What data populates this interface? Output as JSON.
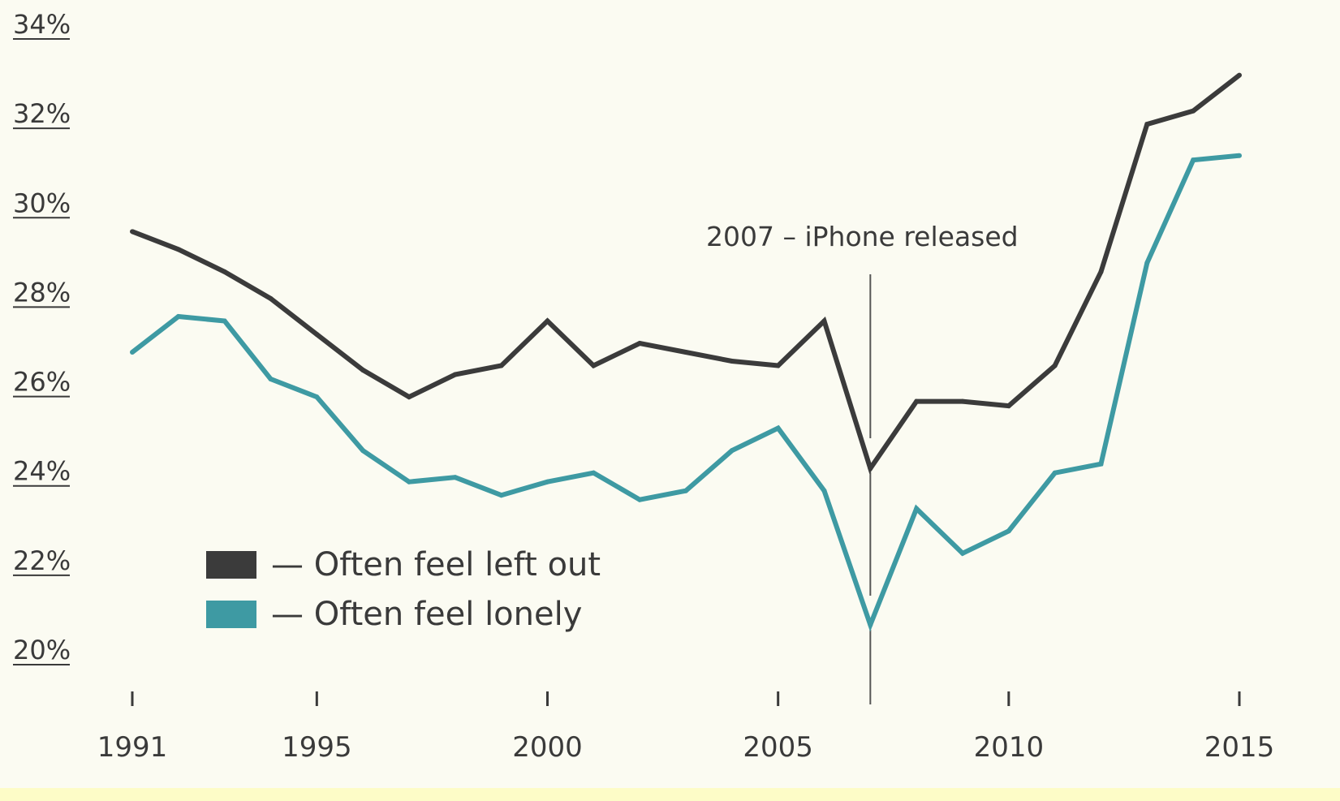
{
  "chart_data": {
    "type": "line",
    "title": "",
    "xlabel": "",
    "ylabel": "",
    "x": [
      1991,
      1992,
      1993,
      1994,
      1995,
      1996,
      1997,
      1998,
      1999,
      2000,
      2001,
      2002,
      2003,
      2004,
      2005,
      2006,
      2007,
      2008,
      2009,
      2010,
      2011,
      2012,
      2013,
      2014,
      2015
    ],
    "xlim": [
      1991,
      2015
    ],
    "ylim": [
      20,
      34
    ],
    "y_ticks": [
      {
        "value": 34,
        "label": "34%"
      },
      {
        "value": 32,
        "label": "32%"
      },
      {
        "value": 30,
        "label": "30%"
      },
      {
        "value": 28,
        "label": "28%"
      },
      {
        "value": 26,
        "label": "26%"
      },
      {
        "value": 24,
        "label": "24%"
      },
      {
        "value": 22,
        "label": "22%"
      },
      {
        "value": 20,
        "label": "20%"
      }
    ],
    "x_ticks": [
      {
        "value": 1991,
        "label": "1991"
      },
      {
        "value": 1995,
        "label": "1995"
      },
      {
        "value": 2000,
        "label": "2000"
      },
      {
        "value": 2005,
        "label": "2005"
      },
      {
        "value": 2010,
        "label": "2010"
      },
      {
        "value": 2015,
        "label": "2015"
      }
    ],
    "series": [
      {
        "name": "— Often feel left out",
        "color": "#3b3b3b",
        "values": [
          29.6,
          29.2,
          28.7,
          28.1,
          27.3,
          26.5,
          25.9,
          26.4,
          26.6,
          27.6,
          26.6,
          27.1,
          26.9,
          26.7,
          26.6,
          27.6,
          24.3,
          25.8,
          25.8,
          25.7,
          26.6,
          28.7,
          32.0,
          32.3,
          33.1
        ]
      },
      {
        "name": "— Often feel lonely",
        "color": "#3e9aa3",
        "values": [
          26.9,
          27.7,
          27.6,
          26.3,
          25.9,
          24.7,
          24.0,
          24.1,
          23.7,
          24.0,
          24.2,
          23.6,
          23.8,
          24.7,
          25.2,
          23.8,
          20.8,
          23.4,
          22.4,
          22.9,
          24.2,
          24.4,
          28.9,
          31.2,
          31.3
        ]
      }
    ],
    "annotation": {
      "x": 2007,
      "text": "2007 – iPhone released"
    },
    "legend_position": "bottom-left",
    "grid": false
  }
}
